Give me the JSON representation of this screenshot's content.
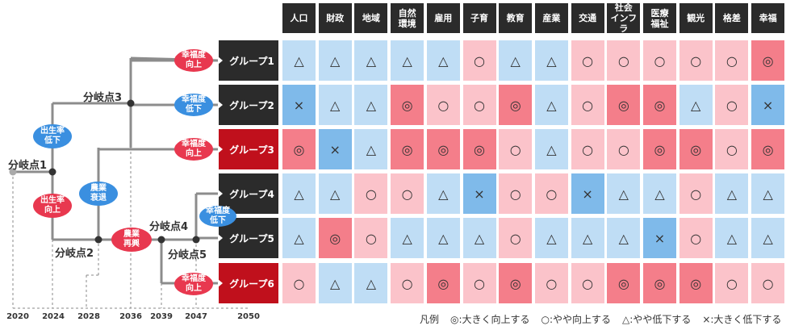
{
  "headers": [
    "人口",
    "財政",
    "地域",
    "自然\n環境",
    "雇用",
    "子育",
    "教育",
    "産業",
    "交通",
    "社会\nインフラ",
    "医療\n福祉",
    "観光",
    "格差",
    "幸福"
  ],
  "groups": [
    {
      "label": "グループ1",
      "color": "#2b2b2b",
      "cells": [
        "△",
        "△",
        "△",
        "△",
        "△",
        "○",
        "△",
        "△",
        "○",
        "○",
        "○",
        "○",
        "○",
        "◎"
      ]
    },
    {
      "label": "グループ2",
      "color": "#2b2b2b",
      "cells": [
        "×",
        "△",
        "△",
        "◎",
        "○",
        "○",
        "◎",
        "△",
        "○",
        "◎",
        "◎",
        "△",
        "○",
        "×"
      ]
    },
    {
      "label": "グループ3",
      "color": "#c0101c",
      "cells": [
        "◎",
        "×",
        "△",
        "◎",
        "◎",
        "◎",
        "○",
        "△",
        "○",
        "○",
        "◎",
        "◎",
        "○",
        "◎"
      ]
    },
    {
      "label": "グループ4",
      "color": "#2b2b2b",
      "cells": [
        "△",
        "△",
        "○",
        "○",
        "△",
        "×",
        "○",
        "○",
        "×",
        "△",
        "△",
        "○",
        "△",
        "△"
      ]
    },
    {
      "label": "グループ5",
      "color": "#2b2b2b",
      "cells": [
        "△",
        "◎",
        "○",
        "△",
        "△",
        "△",
        "○",
        "△",
        "△",
        "△",
        "×",
        "○",
        "△",
        "△"
      ]
    },
    {
      "label": "グループ6",
      "color": "#c0101c",
      "cells": [
        "○",
        "△",
        "△",
        "○",
        "◎",
        "○",
        "◎",
        "○",
        "○",
        "◎",
        "◎",
        "◎",
        "○",
        "○"
      ]
    }
  ],
  "symbol_colors": {
    "◎": "#f47e8a",
    "○": "#fbc3ca",
    "△": "#bfddf5",
    "×": "#7fbaea"
  },
  "branch_points": [
    "分岐点1",
    "分岐点2",
    "分岐点3",
    "分岐点4",
    "分岐点5"
  ],
  "bubbles": [
    {
      "text": "出生率\n低下",
      "color": "#3a8fe0"
    },
    {
      "text": "出生率\n向上",
      "color": "#e8384f"
    },
    {
      "text": "農業\n衰退",
      "color": "#3a8fe0"
    },
    {
      "text": "農業\n再興",
      "color": "#e8384f"
    },
    {
      "text": "幸福度\n向上",
      "color": "#e8384f"
    },
    {
      "text": "幸福度\n低下",
      "color": "#3a8fe0"
    },
    {
      "text": "幸福度\n向上",
      "color": "#e8384f"
    },
    {
      "text": "幸福度\n低下",
      "color": "#3a8fe0"
    },
    {
      "text": "幸福度\n向上",
      "color": "#e8384f"
    }
  ],
  "years": [
    "2020",
    "2024",
    "2028",
    "2036",
    "2039",
    "2047",
    "2050"
  ],
  "legend": {
    "title": "凡例",
    "items": [
      "◎:大きく向上する",
      "○:やや向上する",
      "△:やや低下する",
      "×:大きく低下する"
    ]
  },
  "colors": {
    "line": "#8c8c8c",
    "dot": "#333333",
    "dot_start": "#aaaaaa"
  }
}
